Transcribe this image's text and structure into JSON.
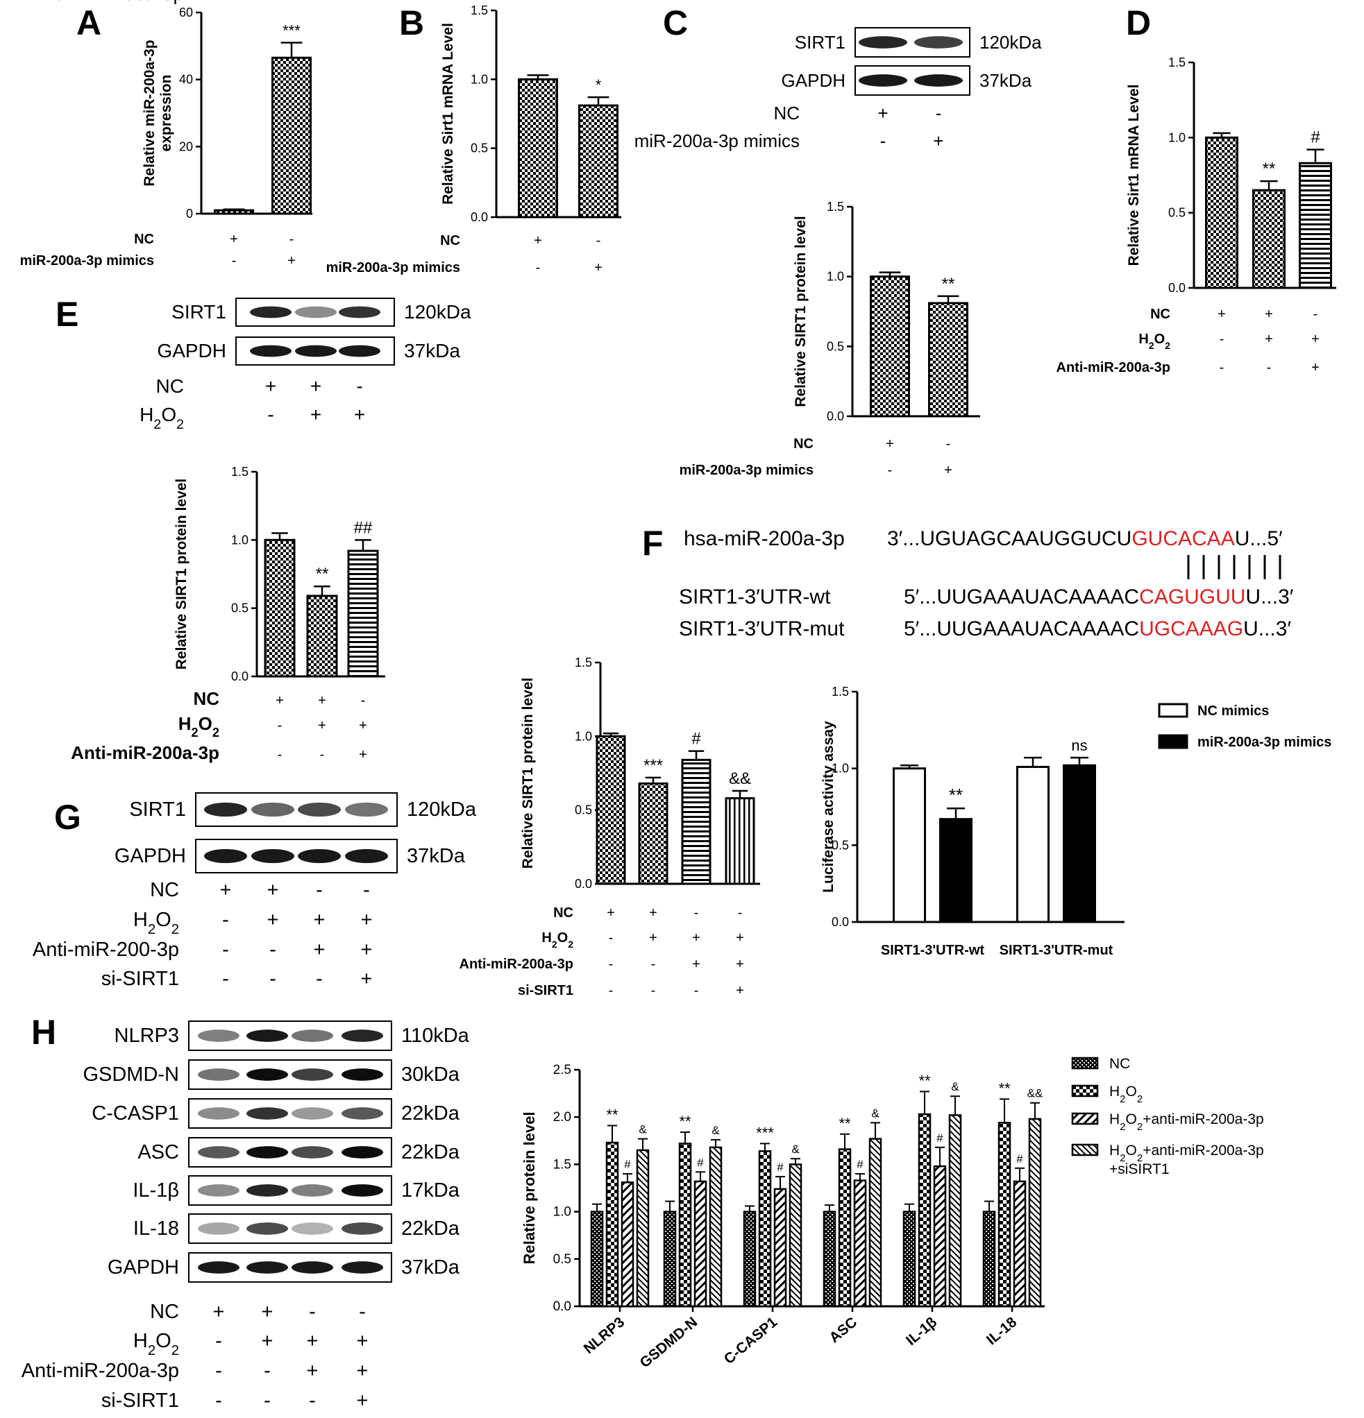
{
  "panels": {
    "A": "A",
    "B": "B",
    "C": "C",
    "D": "D",
    "E": "E",
    "F": "F",
    "G": "G",
    "H": "H"
  },
  "colors": {
    "bar_stroke": "#000000",
    "text": "#000000",
    "seed_highlight": "#e02020"
  },
  "chart_data": [
    {
      "id": "A",
      "type": "bar",
      "ylabel": "Relative miR-200a-3p\nexpression",
      "ylim": [
        0,
        60
      ],
      "yticks": [
        0,
        20,
        40,
        60
      ],
      "groups": [
        [
          "NC",
          "+",
          "-"
        ],
        [
          "miR-200a-3p mimics",
          "-",
          "+"
        ]
      ],
      "values": [
        1.0,
        46.5
      ],
      "errors": [
        0.3,
        4.5
      ],
      "patterns": [
        "checker",
        "checker"
      ],
      "annotations": [
        "",
        "***"
      ]
    },
    {
      "id": "B",
      "type": "bar",
      "ylabel": "Relative Sirt1 mRNA Level",
      "ylim": [
        0,
        1.5
      ],
      "yticks": [
        "0.0",
        "0.5",
        "1.0",
        "1.5"
      ],
      "groups": [
        [
          "NC",
          "+",
          "-"
        ],
        [
          "miR-200a-3p mimics",
          "-",
          "+"
        ]
      ],
      "values": [
        1.0,
        0.81
      ],
      "errors": [
        0.03,
        0.06
      ],
      "patterns": [
        "checker",
        "checker"
      ],
      "annotations": [
        "",
        "*"
      ]
    },
    {
      "id": "C",
      "type": "bar",
      "ylabel": "Relative SIRT1 protein level",
      "ylim": [
        0,
        1.5
      ],
      "yticks": [
        "0.0",
        "0.5",
        "1.0",
        "1.5"
      ],
      "groups": [
        [
          "NC",
          "+",
          "-"
        ],
        [
          "miR-200a-3p mimics",
          "-",
          "+"
        ]
      ],
      "values": [
        1.0,
        0.81
      ],
      "errors": [
        0.03,
        0.05
      ],
      "patterns": [
        "checker",
        "checker"
      ],
      "annotations": [
        "",
        "**"
      ]
    },
    {
      "id": "D",
      "type": "bar",
      "ylabel": "Relative Sirt1 mRNA Level",
      "ylim": [
        0,
        1.5
      ],
      "yticks": [
        "0.0",
        "0.5",
        "1.0",
        "1.5"
      ],
      "groups": [
        [
          "NC",
          "+",
          "+",
          "-"
        ],
        [
          "H2O2",
          "-",
          "+",
          "+"
        ],
        [
          "Anti-miR-200a-3p",
          "-",
          "-",
          "+"
        ]
      ],
      "values": [
        1.0,
        0.65,
        0.83
      ],
      "errors": [
        0.03,
        0.06,
        0.09
      ],
      "patterns": [
        "checker",
        "checker",
        "hlines"
      ],
      "annotations": [
        "",
        "**",
        "#"
      ]
    },
    {
      "id": "E",
      "type": "bar",
      "ylabel": "Relative SIRT1 protein level",
      "ylim": [
        0,
        1.5
      ],
      "yticks": [
        "0.0",
        "0.5",
        "1.0",
        "1.5"
      ],
      "groups": [
        [
          "NC",
          "+",
          "+",
          "-"
        ],
        [
          "H2O2",
          "-",
          "+",
          "+"
        ],
        [
          "Anti-miR-200a-3p",
          "-",
          "-",
          "+"
        ]
      ],
      "values": [
        1.0,
        0.59,
        0.92
      ],
      "errors": [
        0.05,
        0.07,
        0.08
      ],
      "patterns": [
        "checker",
        "checker",
        "hlines"
      ],
      "annotations": [
        "",
        "**",
        "##"
      ]
    },
    {
      "id": "G",
      "type": "bar",
      "ylabel": "Relative SIRT1 protein level",
      "ylim": [
        0,
        1.5
      ],
      "yticks": [
        "0.0",
        "0.5",
        "1.0",
        "1.5"
      ],
      "groups": [
        [
          "NC",
          "+",
          "+",
          "-",
          "-"
        ],
        [
          "H2O2",
          "-",
          "+",
          "+",
          "+"
        ],
        [
          "Anti-miR-200a-3p",
          "-",
          "-",
          "+",
          "+"
        ],
        [
          "si-SIRT1",
          "-",
          "-",
          "-",
          "+"
        ]
      ],
      "values": [
        1.0,
        0.68,
        0.84,
        0.58
      ],
      "errors": [
        0.02,
        0.04,
        0.06,
        0.05
      ],
      "patterns": [
        "checker",
        "checker",
        "hlines",
        "vlines"
      ],
      "annotations": [
        "",
        "***",
        "#",
        "&&"
      ]
    },
    {
      "id": "F",
      "type": "bar",
      "ylabel": "Luciferase activity assay",
      "ylim": [
        0,
        1.5
      ],
      "yticks": [
        "0.0",
        "0.5",
        "1.0",
        "1.5"
      ],
      "categories": [
        "SIRT1-3'UTR-wt",
        "SIRT1-3'UTR-mut"
      ],
      "series": [
        {
          "name": "NC mimics",
          "values": [
            1.0,
            1.01
          ],
          "errors": [
            0.02,
            0.06
          ],
          "fill": "white"
        },
        {
          "name": "miR-200a-3p mimics",
          "values": [
            0.67,
            1.02
          ],
          "errors": [
            0.07,
            0.05
          ],
          "fill": "black"
        }
      ],
      "annotations": [
        "**",
        "ns"
      ]
    },
    {
      "id": "H",
      "type": "bar",
      "ylabel": "Relative protein level",
      "ylim": [
        0,
        2.5
      ],
      "yticks": [
        "0.0",
        "0.5",
        "1.0",
        "1.5",
        "2.0",
        "2.5"
      ],
      "categories": [
        "NLRP3",
        "GSDMD-N",
        "C-CASP1",
        "ASC",
        "IL-1β",
        "IL-18"
      ],
      "series": [
        {
          "name": "NC",
          "values": [
            1.0,
            1.0,
            1.0,
            1.0,
            1.0,
            1.0
          ],
          "errors": [
            0.08,
            0.11,
            0.06,
            0.07,
            0.08,
            0.11
          ]
        },
        {
          "name": "H2O2",
          "values": [
            1.73,
            1.72,
            1.64,
            1.66,
            2.03,
            1.94
          ],
          "errors": [
            0.18,
            0.12,
            0.08,
            0.16,
            0.24,
            0.25
          ]
        },
        {
          "name": "H2O2+anti-miR-200a-3p",
          "values": [
            1.31,
            1.32,
            1.24,
            1.33,
            1.48,
            1.32
          ],
          "errors": [
            0.09,
            0.1,
            0.13,
            0.07,
            0.2,
            0.14
          ]
        },
        {
          "name": "H2O2+anti-miR-200a-3p\n+siSIRT1",
          "values": [
            1.65,
            1.68,
            1.5,
            1.77,
            2.02,
            1.98
          ],
          "errors": [
            0.12,
            0.08,
            0.06,
            0.17,
            0.2,
            0.17
          ]
        }
      ],
      "annotations": [
        [
          "**",
          "#",
          "&"
        ],
        [
          "**",
          "#",
          "&"
        ],
        [
          "***",
          "#",
          "&"
        ],
        [
          "**",
          "#",
          "&"
        ],
        [
          "**",
          "#",
          "&"
        ],
        [
          "**",
          "#",
          "&&"
        ]
      ]
    }
  ],
  "blots": {
    "C": {
      "rows": [
        [
          "SIRT1",
          "120kDa"
        ],
        [
          "GAPDH",
          "37kDa"
        ]
      ],
      "conditions": [
        [
          "NC",
          "+",
          "-"
        ],
        [
          "miR-200a-3p mimics",
          "-",
          "+"
        ]
      ]
    },
    "E": {
      "rows": [
        [
          "SIRT1",
          "120kDa"
        ],
        [
          "GAPDH",
          "37kDa"
        ]
      ],
      "conditions": [
        [
          "NC",
          "+",
          "+",
          "-"
        ],
        [
          "H2O2",
          "-",
          "+",
          "+"
        ],
        [
          "Anti-miR-200a-3p",
          "-",
          "-",
          "+"
        ]
      ]
    },
    "G": {
      "rows": [
        [
          "SIRT1",
          "120kDa"
        ],
        [
          "GAPDH",
          "37kDa"
        ]
      ],
      "conditions": [
        [
          "NC",
          "+",
          "+",
          "-",
          "-"
        ],
        [
          "H2O2",
          "-",
          "+",
          "+",
          "+"
        ],
        [
          "Anti-miR-200-3p",
          "-",
          "-",
          "+",
          "+"
        ],
        [
          "si-SIRT1",
          "-",
          "-",
          "-",
          "+"
        ]
      ]
    },
    "H": {
      "rows": [
        [
          "NLRP3",
          "110kDa"
        ],
        [
          "GSDMD-N",
          "30kDa"
        ],
        [
          "C-CASP1",
          "22kDa"
        ],
        [
          "ASC",
          "22kDa"
        ],
        [
          "IL-1β",
          "17kDa"
        ],
        [
          "IL-18",
          "22kDa"
        ],
        [
          "GAPDH",
          "37kDa"
        ]
      ],
      "conditions": [
        [
          "NC",
          "+",
          "+",
          "-",
          "-"
        ],
        [
          "H2O2",
          "-",
          "+",
          "+",
          "+"
        ],
        [
          "Anti-miR-200a-3p",
          "-",
          "-",
          "+",
          "+"
        ],
        [
          "si-SIRT1",
          "-",
          "-",
          "-",
          "+"
        ]
      ]
    }
  },
  "sequence": {
    "mir_label": "hsa-miR-200a-3p",
    "mir": [
      "3′...UGUAGCAAUGGUCU",
      "GUCACAA",
      "U...5′"
    ],
    "wt_label": "SIRT1-3′UTR-wt",
    "wt": [
      "5′...UUGAAAUACAAAAC",
      "CAGUGUU",
      "U...3′"
    ],
    "mut_label": "SIRT1-3′UTR-mut",
    "mut": [
      "5′...UUGAAAUACAAAAC",
      "UGCAAAG",
      "U...3′"
    ]
  }
}
